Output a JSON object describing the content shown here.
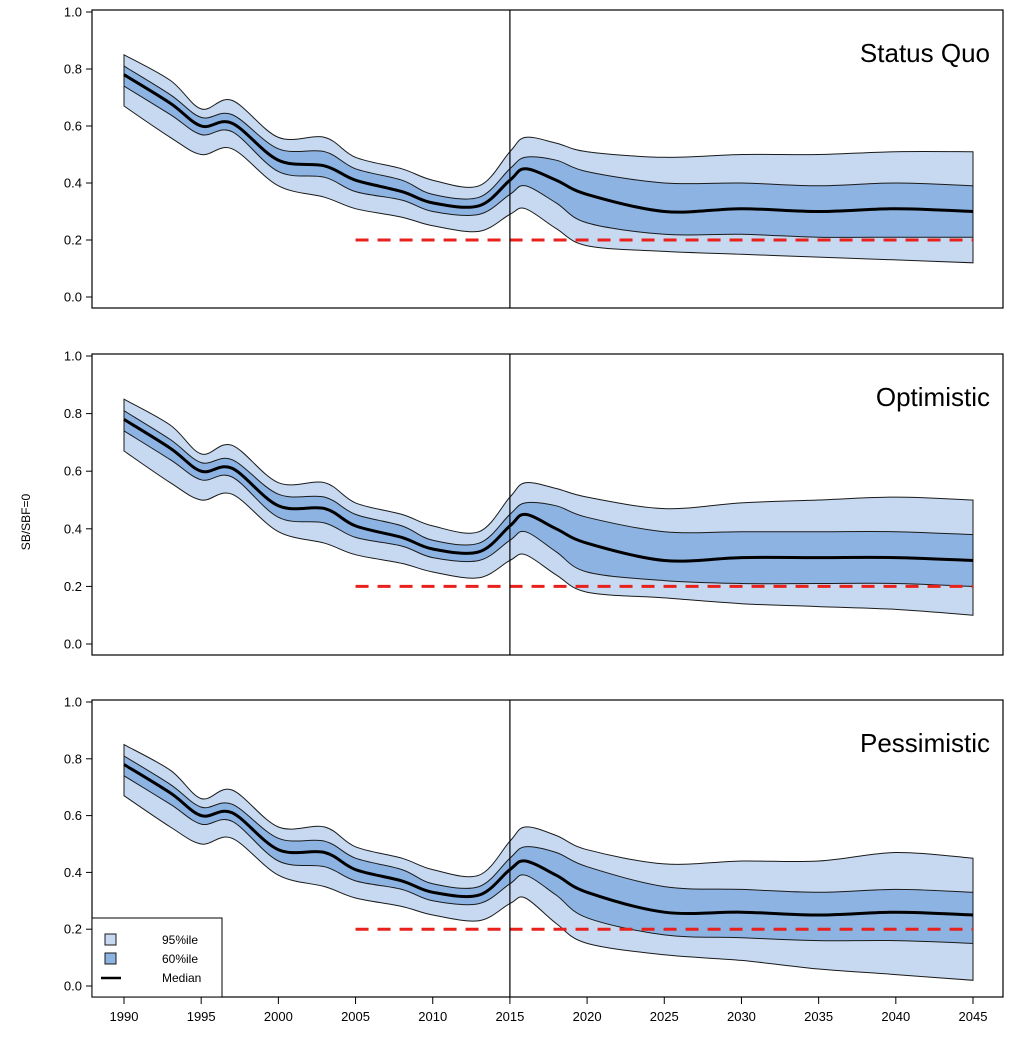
{
  "chart_data": {
    "type": "area",
    "ylabel": "SB/SBF=0",
    "xlabel": "",
    "xlim": [
      1990,
      2045
    ],
    "ylim": [
      0,
      1.0
    ],
    "x_ticks": [
      1990,
      1995,
      2000,
      2005,
      2010,
      2015,
      2020,
      2025,
      2030,
      2035,
      2040,
      2045
    ],
    "y_ticks": [
      "0.0",
      "0.2",
      "0.4",
      "0.6",
      "0.8",
      "1.0"
    ],
    "reference_year": 2015,
    "limit_reference": {
      "value": 0.2,
      "from": 2005,
      "to": 2045,
      "color": "#e8211d",
      "style": "dashed"
    },
    "colors": {
      "band95": "#c6d9f1",
      "band60": "#8db3e2",
      "median": "#000000"
    },
    "legend": {
      "position": "bottom-left",
      "entries": [
        {
          "label": "95%ile",
          "kind": "box",
          "color": "#c6d9f1"
        },
        {
          "label": "60%ile",
          "kind": "box",
          "color": "#8db3e2"
        },
        {
          "label": "Median",
          "kind": "line",
          "color": "#000000"
        }
      ]
    },
    "panels": [
      {
        "title": "Status Quo",
        "x": [
          1990,
          1993,
          1995,
          1997,
          2000,
          2003,
          2005,
          2008,
          2010,
          2013,
          2015,
          2016,
          2018,
          2020,
          2025,
          2030,
          2035,
          2040,
          2045
        ],
        "median": [
          0.78,
          0.68,
          0.6,
          0.61,
          0.48,
          0.46,
          0.41,
          0.37,
          0.33,
          0.32,
          0.41,
          0.45,
          0.41,
          0.36,
          0.3,
          0.31,
          0.3,
          0.31,
          0.3
        ],
        "p20": [
          0.74,
          0.64,
          0.57,
          0.58,
          0.44,
          0.42,
          0.37,
          0.34,
          0.3,
          0.29,
          0.36,
          0.39,
          0.33,
          0.26,
          0.22,
          0.22,
          0.21,
          0.21,
          0.21
        ],
        "p80": [
          0.81,
          0.71,
          0.63,
          0.64,
          0.52,
          0.51,
          0.45,
          0.41,
          0.36,
          0.35,
          0.45,
          0.49,
          0.48,
          0.44,
          0.4,
          0.4,
          0.39,
          0.4,
          0.39
        ],
        "p2_5": [
          0.67,
          0.56,
          0.5,
          0.52,
          0.39,
          0.35,
          0.31,
          0.28,
          0.25,
          0.23,
          0.29,
          0.31,
          0.24,
          0.18,
          0.16,
          0.15,
          0.14,
          0.13,
          0.12
        ],
        "p97_5": [
          0.85,
          0.76,
          0.66,
          0.69,
          0.56,
          0.56,
          0.49,
          0.45,
          0.41,
          0.39,
          0.51,
          0.56,
          0.54,
          0.51,
          0.49,
          0.5,
          0.5,
          0.51,
          0.51
        ]
      },
      {
        "title": "Optimistic",
        "x": [
          1990,
          1993,
          1995,
          1997,
          2000,
          2003,
          2005,
          2008,
          2010,
          2013,
          2015,
          2016,
          2018,
          2020,
          2025,
          2030,
          2035,
          2040,
          2045
        ],
        "median": [
          0.78,
          0.68,
          0.6,
          0.61,
          0.48,
          0.47,
          0.41,
          0.37,
          0.33,
          0.32,
          0.41,
          0.45,
          0.4,
          0.35,
          0.29,
          0.3,
          0.3,
          0.3,
          0.29
        ],
        "p20": [
          0.74,
          0.64,
          0.57,
          0.58,
          0.44,
          0.42,
          0.37,
          0.34,
          0.3,
          0.29,
          0.36,
          0.39,
          0.32,
          0.25,
          0.22,
          0.21,
          0.21,
          0.21,
          0.2
        ],
        "p80": [
          0.81,
          0.71,
          0.63,
          0.64,
          0.52,
          0.51,
          0.45,
          0.41,
          0.36,
          0.35,
          0.45,
          0.49,
          0.48,
          0.44,
          0.39,
          0.39,
          0.39,
          0.39,
          0.38
        ],
        "p2_5": [
          0.67,
          0.56,
          0.5,
          0.52,
          0.39,
          0.35,
          0.31,
          0.28,
          0.25,
          0.23,
          0.29,
          0.31,
          0.24,
          0.18,
          0.16,
          0.14,
          0.13,
          0.12,
          0.1
        ],
        "p97_5": [
          0.85,
          0.76,
          0.66,
          0.69,
          0.56,
          0.56,
          0.49,
          0.45,
          0.41,
          0.39,
          0.51,
          0.56,
          0.54,
          0.51,
          0.47,
          0.49,
          0.5,
          0.51,
          0.5
        ]
      },
      {
        "title": "Pessimistic",
        "x": [
          1990,
          1993,
          1995,
          1997,
          2000,
          2003,
          2005,
          2008,
          2010,
          2013,
          2015,
          2016,
          2018,
          2020,
          2025,
          2030,
          2035,
          2040,
          2045
        ],
        "median": [
          0.78,
          0.68,
          0.6,
          0.61,
          0.48,
          0.47,
          0.41,
          0.37,
          0.33,
          0.32,
          0.41,
          0.44,
          0.39,
          0.33,
          0.26,
          0.26,
          0.25,
          0.26,
          0.25
        ],
        "p20": [
          0.74,
          0.64,
          0.57,
          0.58,
          0.44,
          0.42,
          0.37,
          0.34,
          0.3,
          0.29,
          0.36,
          0.39,
          0.32,
          0.24,
          0.18,
          0.17,
          0.16,
          0.16,
          0.15
        ],
        "p80": [
          0.81,
          0.71,
          0.63,
          0.64,
          0.52,
          0.51,
          0.45,
          0.41,
          0.36,
          0.35,
          0.45,
          0.49,
          0.47,
          0.42,
          0.35,
          0.34,
          0.33,
          0.34,
          0.33
        ],
        "p2_5": [
          0.67,
          0.56,
          0.5,
          0.52,
          0.39,
          0.35,
          0.31,
          0.28,
          0.25,
          0.23,
          0.29,
          0.31,
          0.22,
          0.15,
          0.11,
          0.09,
          0.06,
          0.04,
          0.02
        ],
        "p97_5": [
          0.85,
          0.76,
          0.66,
          0.69,
          0.56,
          0.56,
          0.49,
          0.45,
          0.41,
          0.39,
          0.51,
          0.56,
          0.53,
          0.48,
          0.43,
          0.44,
          0.44,
          0.47,
          0.45
        ]
      }
    ]
  }
}
